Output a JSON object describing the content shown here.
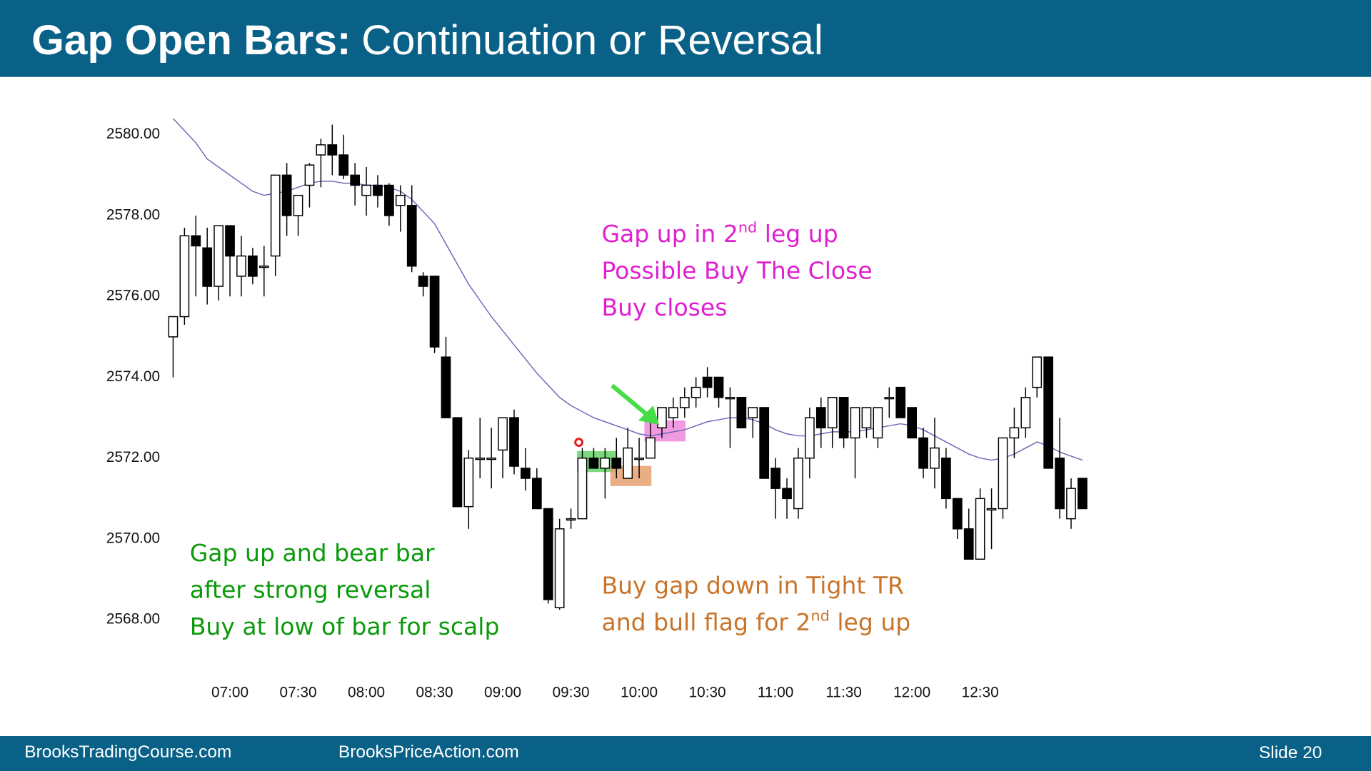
{
  "header": {
    "title_bold": "Gap Open Bars:",
    "title_rest": "Continuation or Reversal"
  },
  "footer": {
    "left": "BrooksTradingCourse.com",
    "middle": "BrooksPriceAction.com",
    "right": "Slide  20"
  },
  "chart_data": {
    "type": "candlestick",
    "categories": [
      null,
      null,
      null,
      null,
      null,
      "07:00",
      null,
      null,
      null,
      null,
      null,
      "07:30",
      null,
      null,
      null,
      null,
      null,
      "08:00",
      null,
      null,
      null,
      null,
      null,
      "08:30",
      null,
      null,
      null,
      null,
      null,
      "09:00",
      null,
      null,
      null,
      null,
      null,
      "09:30",
      null,
      null,
      null,
      null,
      null,
      "10:00",
      null,
      null,
      null,
      null,
      null,
      "10:30",
      null,
      null,
      null,
      null,
      null,
      "11:00",
      null,
      null,
      null,
      null,
      null,
      "11:30",
      null,
      null,
      null,
      null,
      null,
      "12:00",
      null,
      null,
      null,
      null,
      null,
      "12:30",
      null,
      null,
      null,
      null,
      null,
      null,
      null,
      null,
      null
    ],
    "open": [
      2575.0,
      2575.5,
      2577.5,
      2577.2,
      2576.25,
      2577.75,
      2576.5,
      2577.0,
      2576.75,
      2577.0,
      2579.0,
      2578.0,
      2578.75,
      2579.5,
      2579.75,
      2579.5,
      2579.0,
      2578.5,
      2578.75,
      2578.75,
      2578.25,
      2578.25,
      2576.5,
      2576.5,
      2574.5,
      2573.0,
      2570.8,
      2572.0,
      2572.0,
      2572.2,
      2573.0,
      2571.75,
      2571.5,
      2570.75,
      2568.3,
      2570.5,
      2570.5,
      2572.0,
      2571.75,
      2572.0,
      2571.5,
      2572.0,
      2572.0,
      2572.75,
      2573.0,
      2573.25,
      2573.5,
      2574.0,
      2574.0,
      2573.5,
      2573.5,
      2573.0,
      2573.25,
      2571.75,
      2571.25,
      2570.75,
      2572.0,
      2573.25,
      2572.75,
      2573.5,
      2572.5,
      2572.75,
      2572.5,
      2573.5,
      2573.75,
      2573.25,
      2572.5,
      2571.75,
      2572.0,
      2571.0,
      2570.25,
      2569.5,
      2570.75,
      2570.75,
      2572.5,
      2572.75,
      2573.75,
      2574.5,
      2572.0,
      2570.5,
      2571.5
    ],
    "high": [
      2575.5,
      2577.7,
      2578.0,
      2577.7,
      2577.75,
      2577.75,
      2577.5,
      2577.2,
      2577.25,
      2579.0,
      2579.3,
      2578.5,
      2579.3,
      2579.9,
      2580.25,
      2580.0,
      2579.3,
      2579.2,
      2579.0,
      2578.8,
      2578.75,
      2578.75,
      2576.6,
      2576.5,
      2575.0,
      2573.0,
      2572.2,
      2573.0,
      2572.75,
      2573.0,
      2573.2,
      2572.25,
      2571.75,
      2570.75,
      2570.5,
      2570.75,
      2572.25,
      2572.25,
      2572.25,
      2572.5,
      2572.75,
      2572.5,
      2573.0,
      2573.25,
      2573.5,
      2573.75,
      2574.0,
      2574.25,
      2574.0,
      2573.75,
      2573.5,
      2573.25,
      2573.25,
      2572.0,
      2571.5,
      2572.25,
      2573.25,
      2573.5,
      2573.5,
      2573.5,
      2573.25,
      2573.25,
      2573.25,
      2573.75,
      2573.75,
      2573.25,
      2572.75,
      2573.0,
      2572.25,
      2571.0,
      2570.75,
      2571.25,
      2571.25,
      2572.5,
      2573.25,
      2573.75,
      2574.5,
      2574.5,
      2573.0,
      2571.5,
      2571.5
    ],
    "low": [
      2574.0,
      2575.3,
      2576.0,
      2575.8,
      2575.9,
      2576.0,
      2576.0,
      2576.3,
      2576.0,
      2576.5,
      2577.5,
      2577.5,
      2578.2,
      2578.7,
      2579.0,
      2578.9,
      2578.25,
      2578.0,
      2578.2,
      2577.75,
      2577.6,
      2576.6,
      2576.0,
      2574.6,
      2573.0,
      2570.8,
      2570.25,
      2571.5,
      2571.25,
      2571.5,
      2571.6,
      2571.2,
      2570.75,
      2568.4,
      2568.25,
      2570.25,
      2570.5,
      2571.75,
      2571.0,
      2571.5,
      2571.5,
      2571.5,
      2572.0,
      2572.5,
      2572.75,
      2573.0,
      2573.25,
      2573.5,
      2573.25,
      2572.25,
      2572.75,
      2572.5,
      2571.5,
      2570.5,
      2570.5,
      2570.5,
      2571.5,
      2572.25,
      2572.25,
      2572.25,
      2571.5,
      2572.5,
      2572.25,
      2573.0,
      2573.0,
      2572.5,
      2571.5,
      2571.25,
      2570.75,
      2570.0,
      2569.5,
      2569.5,
      2569.75,
      2570.5,
      2572.0,
      2572.5,
      2573.5,
      2571.75,
      2570.5,
      2570.25,
      2570.75
    ],
    "close": [
      2575.5,
      2577.5,
      2577.25,
      2576.25,
      2577.75,
      2577.0,
      2577.0,
      2576.5,
      2576.75,
      2579.0,
      2578.0,
      2578.5,
      2579.25,
      2579.75,
      2579.5,
      2579.0,
      2578.75,
      2578.75,
      2578.5,
      2578.0,
      2578.5,
      2576.75,
      2576.25,
      2574.75,
      2573.0,
      2570.8,
      2572.0,
      2572.0,
      2572.0,
      2573.0,
      2571.8,
      2571.5,
      2570.75,
      2568.5,
      2570.25,
      2570.5,
      2572.0,
      2571.75,
      2572.0,
      2571.75,
      2572.25,
      2572.0,
      2572.5,
      2573.25,
      2573.25,
      2573.5,
      2573.75,
      2573.75,
      2573.5,
      2573.5,
      2572.75,
      2573.25,
      2571.5,
      2571.25,
      2571.0,
      2572.0,
      2573.0,
      2572.75,
      2573.5,
      2572.5,
      2573.25,
      2573.25,
      2573.25,
      2573.5,
      2573.0,
      2572.5,
      2571.75,
      2572.25,
      2571.0,
      2570.25,
      2569.5,
      2571.0,
      2570.75,
      2572.5,
      2572.75,
      2573.5,
      2574.5,
      2571.75,
      2570.75,
      2571.25,
      2570.75
    ],
    "moving_average": {
      "color": "#6a6ab8",
      "values": [
        2580.4,
        2580.1,
        2579.8,
        2579.4,
        2579.2,
        2579.0,
        2578.8,
        2578.6,
        2578.5,
        2578.55,
        2578.6,
        2578.7,
        2578.8,
        2578.85,
        2578.85,
        2578.8,
        2578.8,
        2578.75,
        2578.75,
        2578.7,
        2578.6,
        2578.4,
        2578.1,
        2577.8,
        2577.3,
        2576.8,
        2576.3,
        2575.9,
        2575.5,
        2575.15,
        2574.8,
        2574.45,
        2574.1,
        2573.8,
        2573.5,
        2573.3,
        2573.15,
        2573.0,
        2572.9,
        2572.8,
        2572.7,
        2572.6,
        2572.55,
        2572.6,
        2572.65,
        2572.7,
        2572.8,
        2572.9,
        2572.95,
        2573.0,
        2573.0,
        2572.95,
        2572.85,
        2572.7,
        2572.6,
        2572.55,
        2572.55,
        2572.6,
        2572.65,
        2572.65,
        2572.65,
        2572.7,
        2572.75,
        2572.8,
        2572.85,
        2572.8,
        2572.7,
        2572.55,
        2572.4,
        2572.25,
        2572.1,
        2572.0,
        2571.95,
        2572.0,
        2572.1,
        2572.25,
        2572.4,
        2572.3,
        2572.15,
        2572.05,
        2571.95
      ]
    },
    "ylim": [
      2567.75,
      2580.5
    ],
    "yticks": [
      {
        "value": 2568,
        "label": "2568.00"
      },
      {
        "value": 2570,
        "label": "2570.00"
      },
      {
        "value": 2572,
        "label": "2572.00"
      },
      {
        "value": 2574,
        "label": "2574.00"
      },
      {
        "value": 2576,
        "label": "2576.00"
      },
      {
        "value": 2578,
        "label": "2578.00"
      },
      {
        "value": 2580,
        "label": "2580.00"
      }
    ],
    "bull_color": "#ffffff",
    "bear_color": "#000000",
    "annotations": [
      {
        "color": "#0a9a0a",
        "lines": [
          [
            {
              "text": "Gap up and bear bar"
            }
          ],
          [
            {
              "text": "after strong reversal"
            }
          ],
          [
            {
              "text": "Buy at low of bar for scalp"
            }
          ]
        ]
      },
      {
        "color": "#e020d0",
        "lines": [
          [
            {
              "text": "Gap up in 2"
            },
            {
              "text": "nd",
              "sup": true
            },
            {
              "text": " leg up"
            }
          ],
          [
            {
              "text": "Possible Buy The Close"
            }
          ],
          [
            {
              "text": "Buy closes"
            }
          ]
        ]
      },
      {
        "color": "#c8742a",
        "lines": [
          [
            {
              "text": "Buy gap down in Tight TR"
            }
          ],
          [
            {
              "text": "and bull flag for 2"
            },
            {
              "text": "nd",
              "sup": true
            },
            {
              "text": " leg up"
            }
          ]
        ]
      }
    ]
  }
}
